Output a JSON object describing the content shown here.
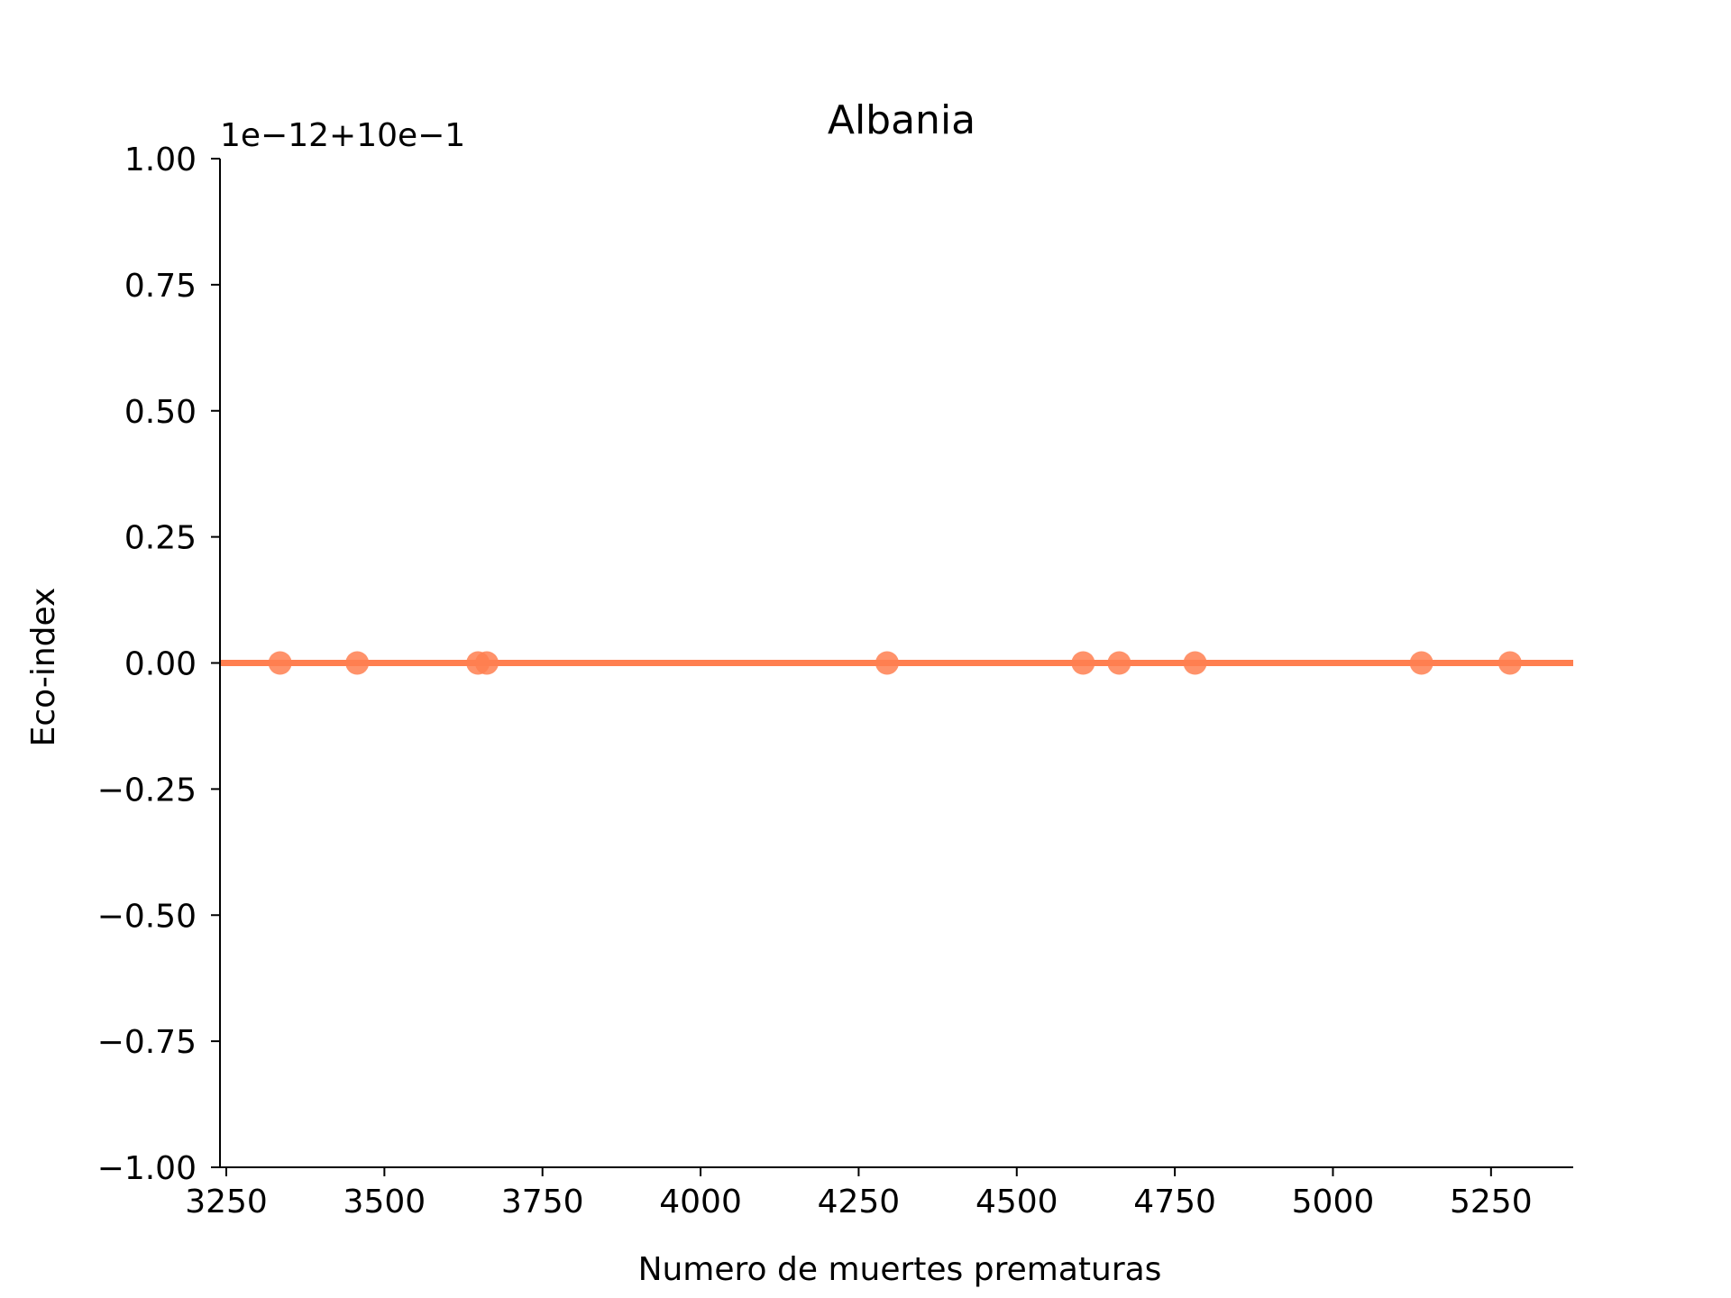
{
  "chart_data": {
    "type": "scatter",
    "title": "Albania",
    "xlabel": "Numero de muertes prematuras",
    "ylabel": "Eco-index",
    "offset_label": "1e−12+10e−1",
    "xlim": [
      3240,
      5380
    ],
    "ylim": [
      -1.0,
      1.0
    ],
    "x_ticks": [
      3250,
      3500,
      3750,
      4000,
      4250,
      4500,
      4750,
      5000,
      5250
    ],
    "x_tick_labels": [
      "3250",
      "3500",
      "3750",
      "4000",
      "4250",
      "4500",
      "4750",
      "5000",
      "5250"
    ],
    "y_ticks": [
      1.0,
      0.75,
      0.5,
      0.25,
      0.0,
      -0.25,
      -0.5,
      -0.75,
      -1.0
    ],
    "y_tick_labels": [
      "1.00",
      "0.75",
      "0.50",
      "0.25",
      "0.00",
      "−0.25",
      "−0.50",
      "−0.75",
      "−1.00"
    ],
    "points": {
      "x": [
        3335,
        3457,
        3648,
        3662,
        4295,
        4605,
        4662,
        4782,
        5140,
        5280
      ],
      "y": [
        0,
        0,
        0,
        0,
        0,
        0,
        0,
        0,
        0,
        0
      ]
    },
    "regression_line": {
      "x": [
        3240,
        5380
      ],
      "y": [
        0,
        0
      ]
    },
    "grid": false,
    "colors": {
      "points": "#ff7f50",
      "line": "#ff7f50",
      "axes": "#000000"
    }
  }
}
